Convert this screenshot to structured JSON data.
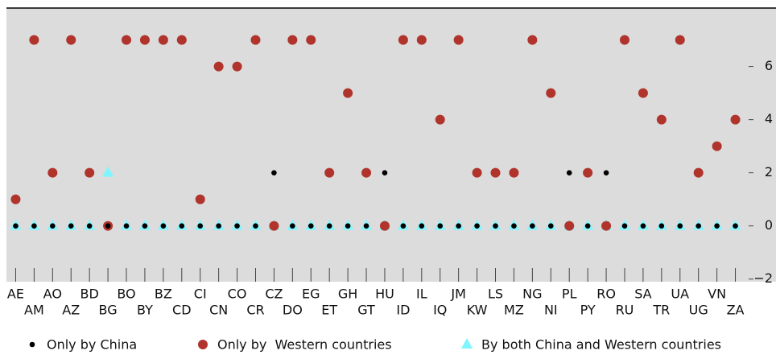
{
  "chart_data": {
    "type": "scatter",
    "categories": [
      "AE",
      "AM",
      "AO",
      "AZ",
      "BD",
      "BG",
      "BO",
      "BY",
      "BZ",
      "CD",
      "CI",
      "CN",
      "CO",
      "CR",
      "CZ",
      "DO",
      "EG",
      "ET",
      "GH",
      "GT",
      "HU",
      "ID",
      "IL",
      "IQ",
      "JM",
      "KW",
      "LS",
      "MZ",
      "NG",
      "NI",
      "PL",
      "PY",
      "RO",
      "RU",
      "SA",
      "TR",
      "UA",
      "UG",
      "VN",
      "ZA"
    ],
    "series": [
      {
        "name": "By both China and Western countries",
        "color": "#7ff6ff",
        "marker": "triangle",
        "values": [
          0,
          0,
          0,
          0,
          0,
          2,
          0,
          0,
          0,
          0,
          0,
          0,
          0,
          0,
          0,
          0,
          0,
          0,
          0,
          0,
          0,
          0,
          0,
          0,
          0,
          0,
          0,
          0,
          0,
          0,
          0,
          0,
          0,
          0,
          0,
          0,
          0,
          0,
          0,
          0
        ]
      },
      {
        "name": "Only by  Western countries",
        "color": "#b0342c",
        "marker": "circle",
        "values": [
          1,
          7,
          2,
          7,
          2,
          0,
          7,
          7,
          7,
          7,
          1,
          6,
          6,
          7,
          0,
          7,
          7,
          2,
          5,
          2,
          0,
          7,
          7,
          4,
          7,
          2,
          2,
          2,
          7,
          5,
          0,
          2,
          0,
          7,
          5,
          4,
          7,
          2,
          3,
          4
        ]
      },
      {
        "name": "Only by China",
        "color": "#000000",
        "marker": "dot",
        "values": [
          0,
          0,
          0,
          0,
          0,
          0,
          0,
          0,
          0,
          0,
          0,
          0,
          0,
          0,
          2,
          0,
          0,
          0,
          0,
          0,
          2,
          0,
          0,
          0,
          0,
          0,
          0,
          0,
          0,
          0,
          2,
          0,
          2,
          0,
          0,
          0,
          0,
          0,
          0,
          0
        ]
      }
    ],
    "legend_order": [
      2,
      1,
      0
    ],
    "ylim": [
      -2.1,
      8.2
    ],
    "yticks": [
      {
        "value": -2,
        "label": "−2"
      },
      0,
      2,
      4,
      6
    ],
    "axis_side": "right",
    "background": "#dcdcdc"
  }
}
